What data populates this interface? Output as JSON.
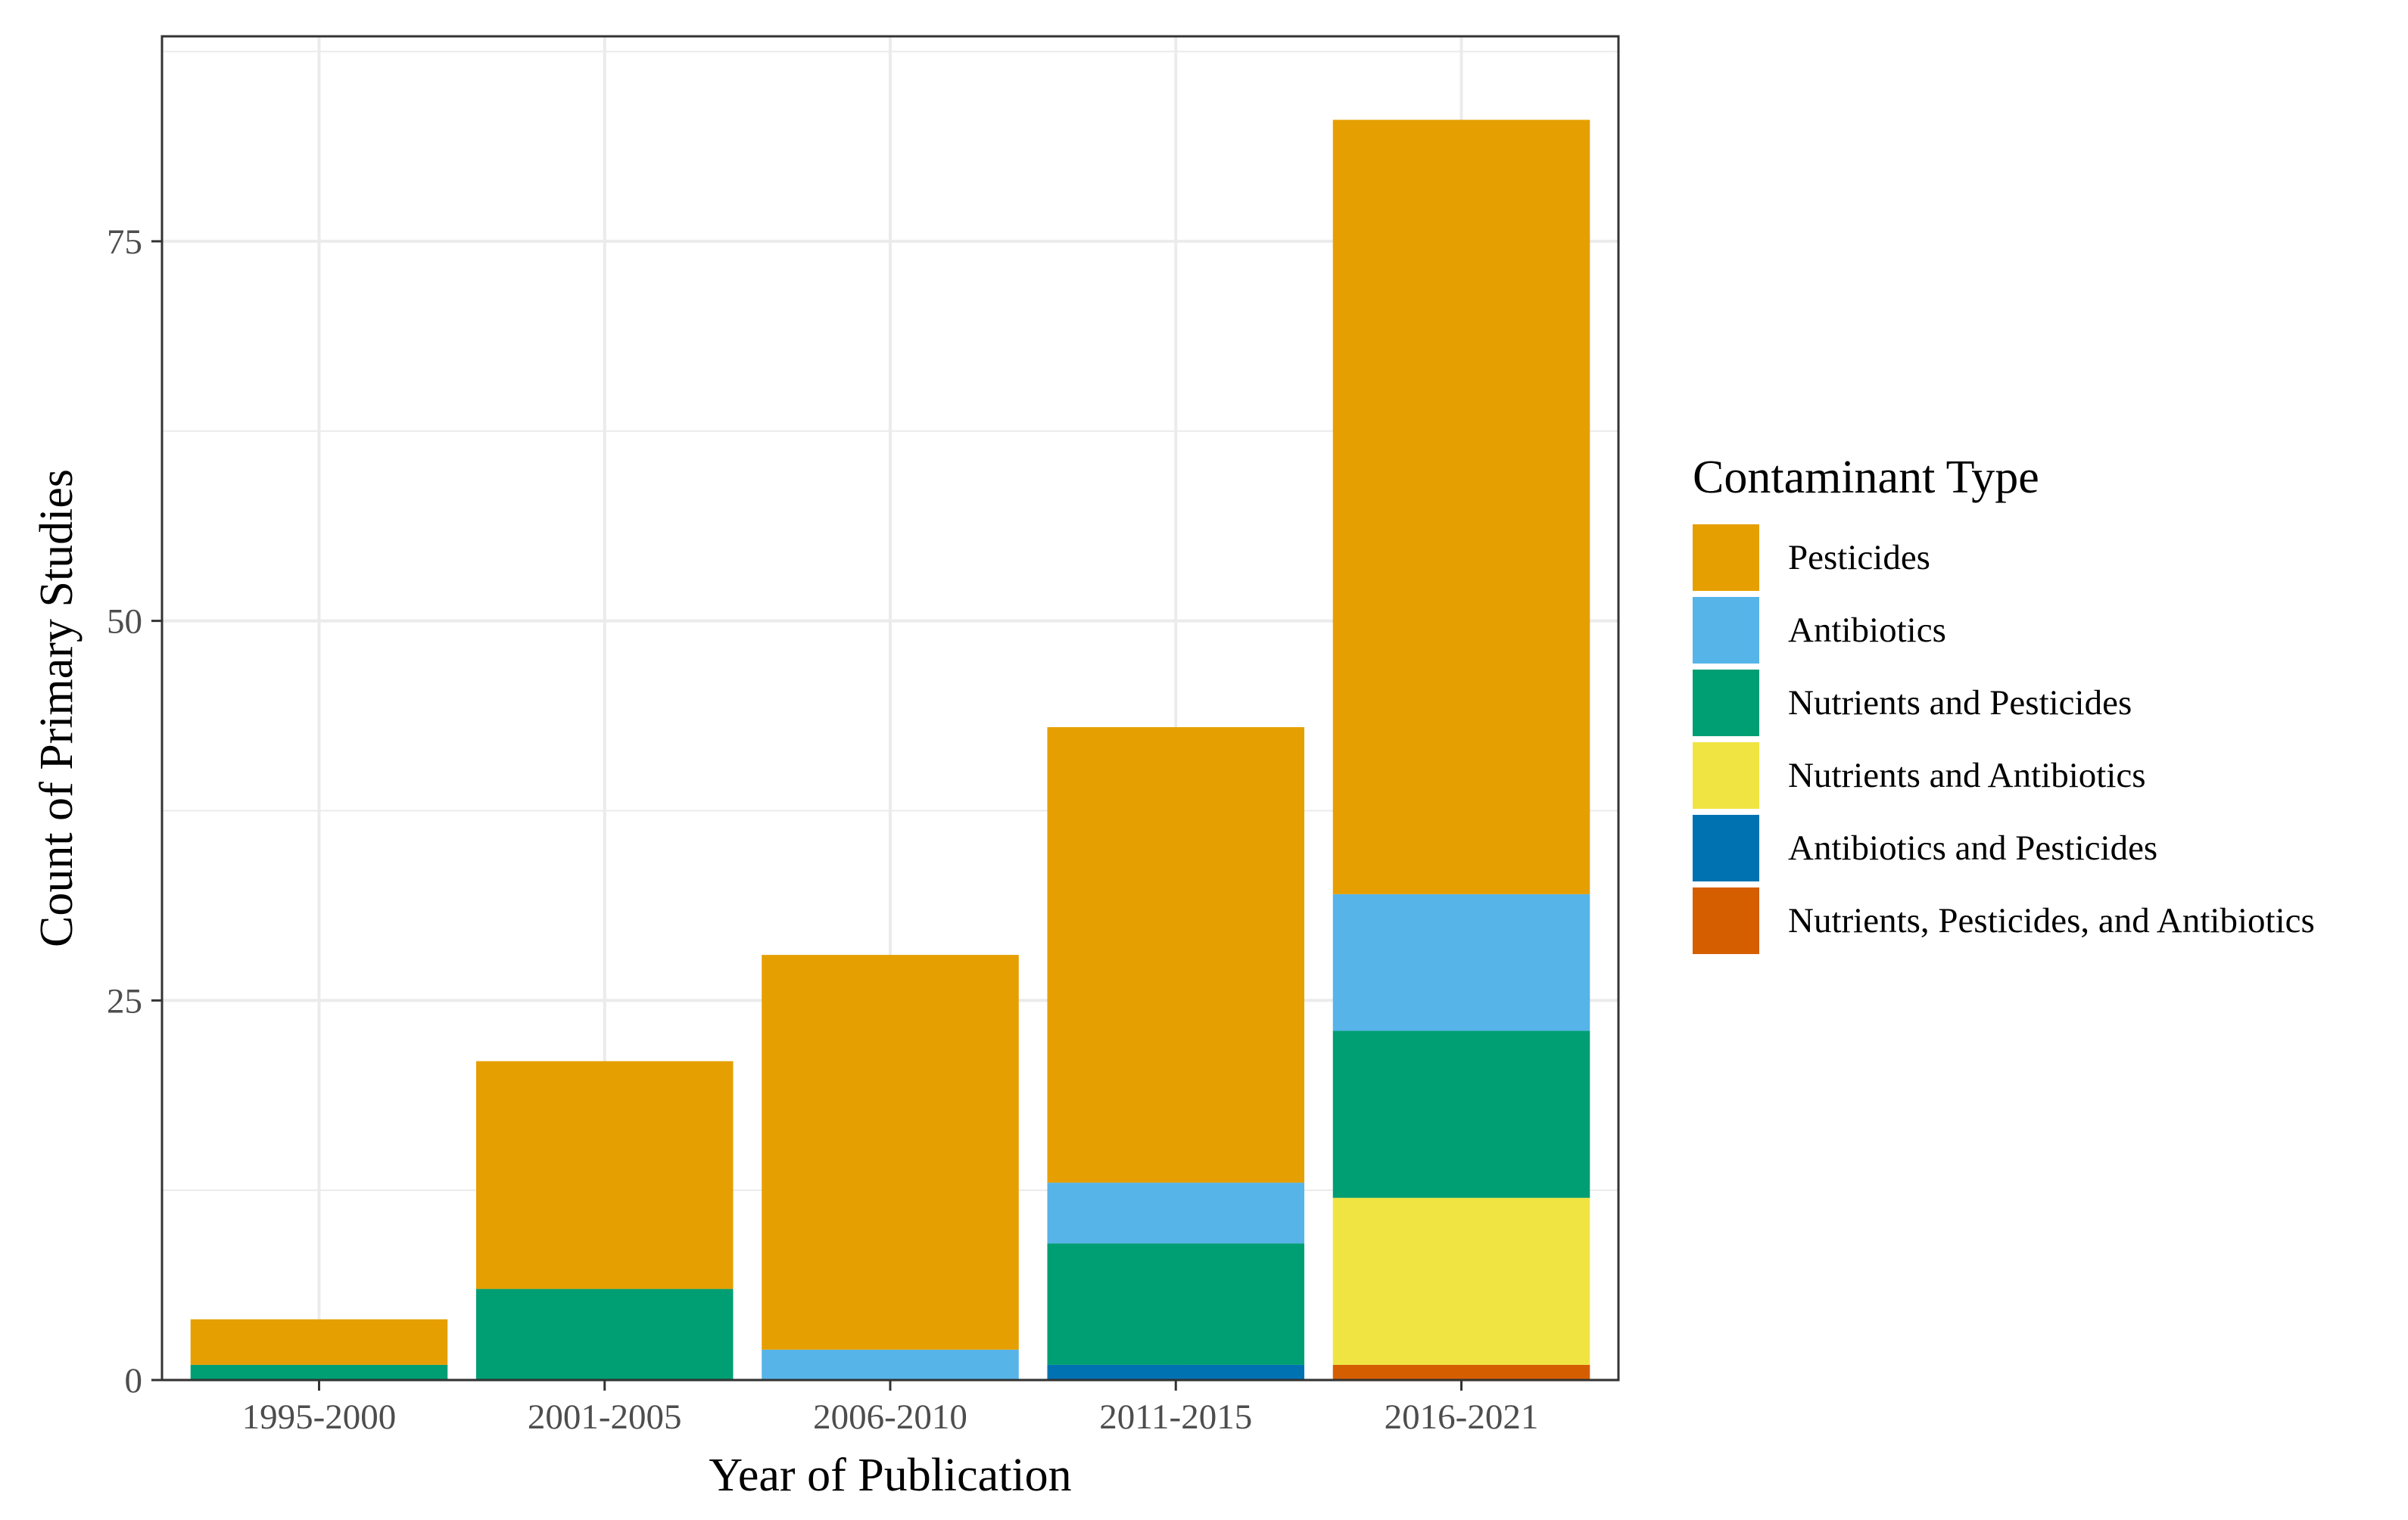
{
  "chart_data": {
    "type": "bar",
    "stacked": true,
    "xlabel": "Year of Publication",
    "ylabel": "Count of Primary Studies",
    "ylim": [
      0,
      88.5
    ],
    "yticks": [
      0,
      25,
      50,
      75
    ],
    "grid": true,
    "legend_position": "right",
    "legend_title": "Contaminant Type",
    "categories": [
      "1995-2000",
      "2001-2005",
      "2006-2010",
      "2011-2015",
      "2016-2021"
    ],
    "series": [
      {
        "name": "Pesticides",
        "color": "#E69F00",
        "values": [
          3,
          15,
          26,
          30,
          51
        ]
      },
      {
        "name": "Antibiotics",
        "color": "#56B4E9",
        "values": [
          0,
          0,
          2,
          4,
          9
        ]
      },
      {
        "name": "Nutrients and Pesticides",
        "color": "#009E73",
        "values": [
          1,
          6,
          0,
          8,
          11
        ]
      },
      {
        "name": "Nutrients and Antibiotics",
        "color": "#F0E442",
        "values": [
          0,
          0,
          0,
          0,
          11
        ]
      },
      {
        "name": "Antibiotics and Pesticides",
        "color": "#0072B2",
        "values": [
          0,
          0,
          0,
          1,
          0
        ]
      },
      {
        "name": "Nutrients, Pesticides, and Antibiotics",
        "color": "#D55E00",
        "values": [
          0,
          0,
          0,
          0,
          1
        ]
      }
    ],
    "stack_order_bottom_to_top": [
      5,
      4,
      3,
      2,
      1,
      0
    ]
  }
}
